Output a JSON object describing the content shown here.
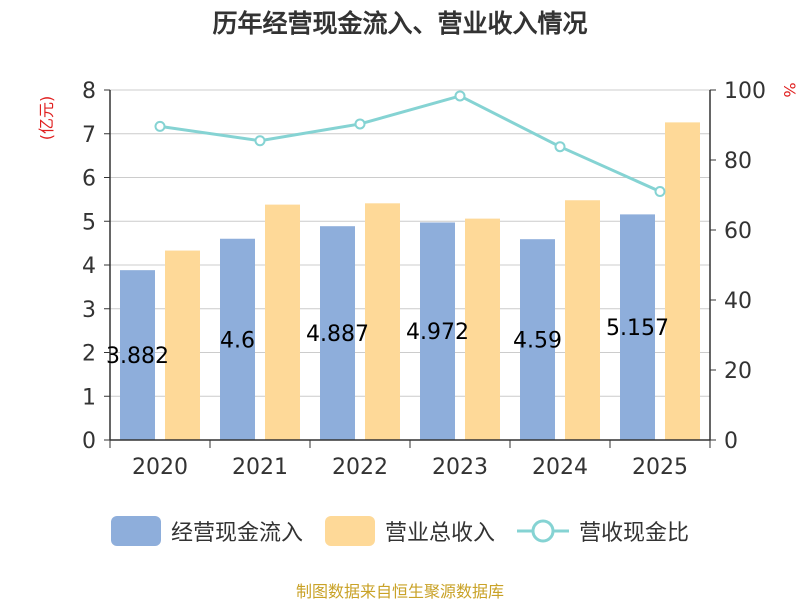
{
  "title": "历年经营现金流入、营业收入情况",
  "source_note": "制图数据来自恒生聚源数据库",
  "colors": {
    "cash_inflow": "#8eaedb",
    "revenue": "#fed998",
    "ratio": "#85d3d3",
    "axis_unit": "#e02020",
    "text": "#333333",
    "grid": "#cccccc"
  },
  "chart_data": {
    "type": "bar",
    "categories": [
      "2020",
      "2021",
      "2022",
      "2023",
      "2024",
      "2025"
    ],
    "series": [
      {
        "name": "经营现金流入",
        "axis": "left",
        "kind": "bar",
        "values": [
          3.882,
          4.6,
          4.887,
          4.972,
          4.59,
          5.157
        ],
        "data_labels": [
          "3.882",
          "4.6",
          "4.887",
          "4.972",
          "4.59",
          "5.157"
        ]
      },
      {
        "name": "营业总收入",
        "axis": "left",
        "kind": "bar",
        "values": [
          4.33,
          5.38,
          5.41,
          5.06,
          5.48,
          7.26
        ]
      },
      {
        "name": "营收现金比",
        "axis": "right",
        "kind": "line",
        "values": [
          89.6,
          85.5,
          90.3,
          98.3,
          83.8,
          71.0
        ]
      }
    ],
    "y_left": {
      "label": "(亿元)",
      "ylim": [
        0,
        8
      ],
      "ticks": [
        "0",
        "1",
        "2",
        "3",
        "4",
        "5",
        "6",
        "7",
        "8"
      ]
    },
    "y_right": {
      "label": "%",
      "ylim": [
        0,
        100
      ],
      "ticks": [
        "0",
        "20",
        "40",
        "60",
        "80",
        "100"
      ]
    },
    "grid": true,
    "legend_position": "bottom"
  }
}
